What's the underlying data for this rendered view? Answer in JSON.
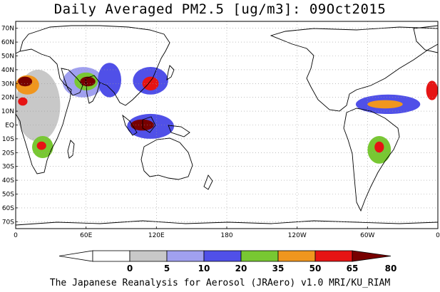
{
  "title": "Daily Averaged PM2.5 [ug/m3]: 09Oct2015",
  "footer": "The Japanese Reanalysis for Aerosol (JRAero) v1.0 MRI/KU_RIAM",
  "map": {
    "projection": "equirectangular",
    "lon_range": [
      0,
      360
    ],
    "lat_range": [
      -75,
      75
    ],
    "lat_ticks": [
      {
        "value": 70,
        "label": "70N"
      },
      {
        "value": 60,
        "label": "60N"
      },
      {
        "value": 50,
        "label": "50N"
      },
      {
        "value": 40,
        "label": "40N"
      },
      {
        "value": 30,
        "label": "30N"
      },
      {
        "value": 20,
        "label": "20N"
      },
      {
        "value": 10,
        "label": "10N"
      },
      {
        "value": 0,
        "label": "EQ"
      },
      {
        "value": -10,
        "label": "10S"
      },
      {
        "value": -20,
        "label": "20S"
      },
      {
        "value": -30,
        "label": "30S"
      },
      {
        "value": -40,
        "label": "40S"
      },
      {
        "value": -50,
        "label": "50S"
      },
      {
        "value": -60,
        "label": "60S"
      },
      {
        "value": -70,
        "label": "70S"
      }
    ],
    "lon_ticks": [
      {
        "value": 0,
        "label": "0"
      },
      {
        "value": 60,
        "label": "60E"
      },
      {
        "value": 120,
        "label": "120E"
      },
      {
        "value": 180,
        "label": "180"
      },
      {
        "value": 240,
        "label": "120W"
      },
      {
        "value": 300,
        "label": "60W"
      },
      {
        "value": 360,
        "label": "0"
      }
    ],
    "gridlines": "dotted"
  },
  "colorbar": {
    "levels": [
      0,
      5,
      10,
      20,
      35,
      50,
      65,
      80
    ],
    "colors": [
      "#ffffff",
      "#c8c8c8",
      "#a0a0f0",
      "#5050e8",
      "#78c832",
      "#f0961e",
      "#e61414",
      "#780000"
    ],
    "label_levels": [
      "0",
      "5",
      "10",
      "20",
      "35",
      "50",
      "65",
      "80"
    ]
  },
  "chart_data": {
    "type": "heatmap",
    "title": "Daily Averaged PM2.5 [ug/m3]: 09Oct2015",
    "variable": "PM2.5",
    "units": "ug/m3",
    "date": "09Oct2015",
    "xlim": [
      0,
      360
    ],
    "ylim": [
      -75,
      75
    ],
    "regions": [
      {
        "lon": [
          0,
          38
        ],
        "lat": [
          -12,
          40
        ],
        "level": 5
      },
      {
        "lon": [
          0,
          20
        ],
        "lat": [
          22,
          36
        ],
        "level": 50
      },
      {
        "lon": [
          2,
          14
        ],
        "lat": [
          28,
          35
        ],
        "level": 80
      },
      {
        "lon": [
          2,
          10
        ],
        "lat": [
          14,
          20
        ],
        "level": 65
      },
      {
        "lon": [
          14,
          32
        ],
        "lat": [
          -24,
          -8
        ],
        "level": 35
      },
      {
        "lon": [
          18,
          26
        ],
        "lat": [
          -18,
          -12
        ],
        "level": 65
      },
      {
        "lon": [
          40,
          75
        ],
        "lat": [
          20,
          42
        ],
        "level": 10
      },
      {
        "lon": [
          50,
          70
        ],
        "lat": [
          25,
          38
        ],
        "level": 35
      },
      {
        "lon": [
          55,
          68
        ],
        "lat": [
          28,
          35
        ],
        "level": 80
      },
      {
        "lon": [
          70,
          90
        ],
        "lat": [
          20,
          45
        ],
        "level": 20
      },
      {
        "lon": [
          100,
          130
        ],
        "lat": [
          22,
          42
        ],
        "level": 20
      },
      {
        "lon": [
          108,
          122
        ],
        "lat": [
          25,
          35
        ],
        "level": 65
      },
      {
        "lon": [
          95,
          135
        ],
        "lat": [
          -10,
          8
        ],
        "level": 20
      },
      {
        "lon": [
          98,
          118
        ],
        "lat": [
          -4,
          4
        ],
        "level": 80
      },
      {
        "lon": [
          290,
          345
        ],
        "lat": [
          8,
          22
        ],
        "level": 20
      },
      {
        "lon": [
          300,
          330
        ],
        "lat": [
          12,
          18
        ],
        "level": 50
      },
      {
        "lon": [
          300,
          320
        ],
        "lat": [
          -28,
          -8
        ],
        "level": 35
      },
      {
        "lon": [
          306,
          314
        ],
        "lat": [
          -20,
          -12
        ],
        "level": 65
      },
      {
        "lon": [
          350,
          360
        ],
        "lat": [
          18,
          32
        ],
        "level": 65
      }
    ]
  }
}
